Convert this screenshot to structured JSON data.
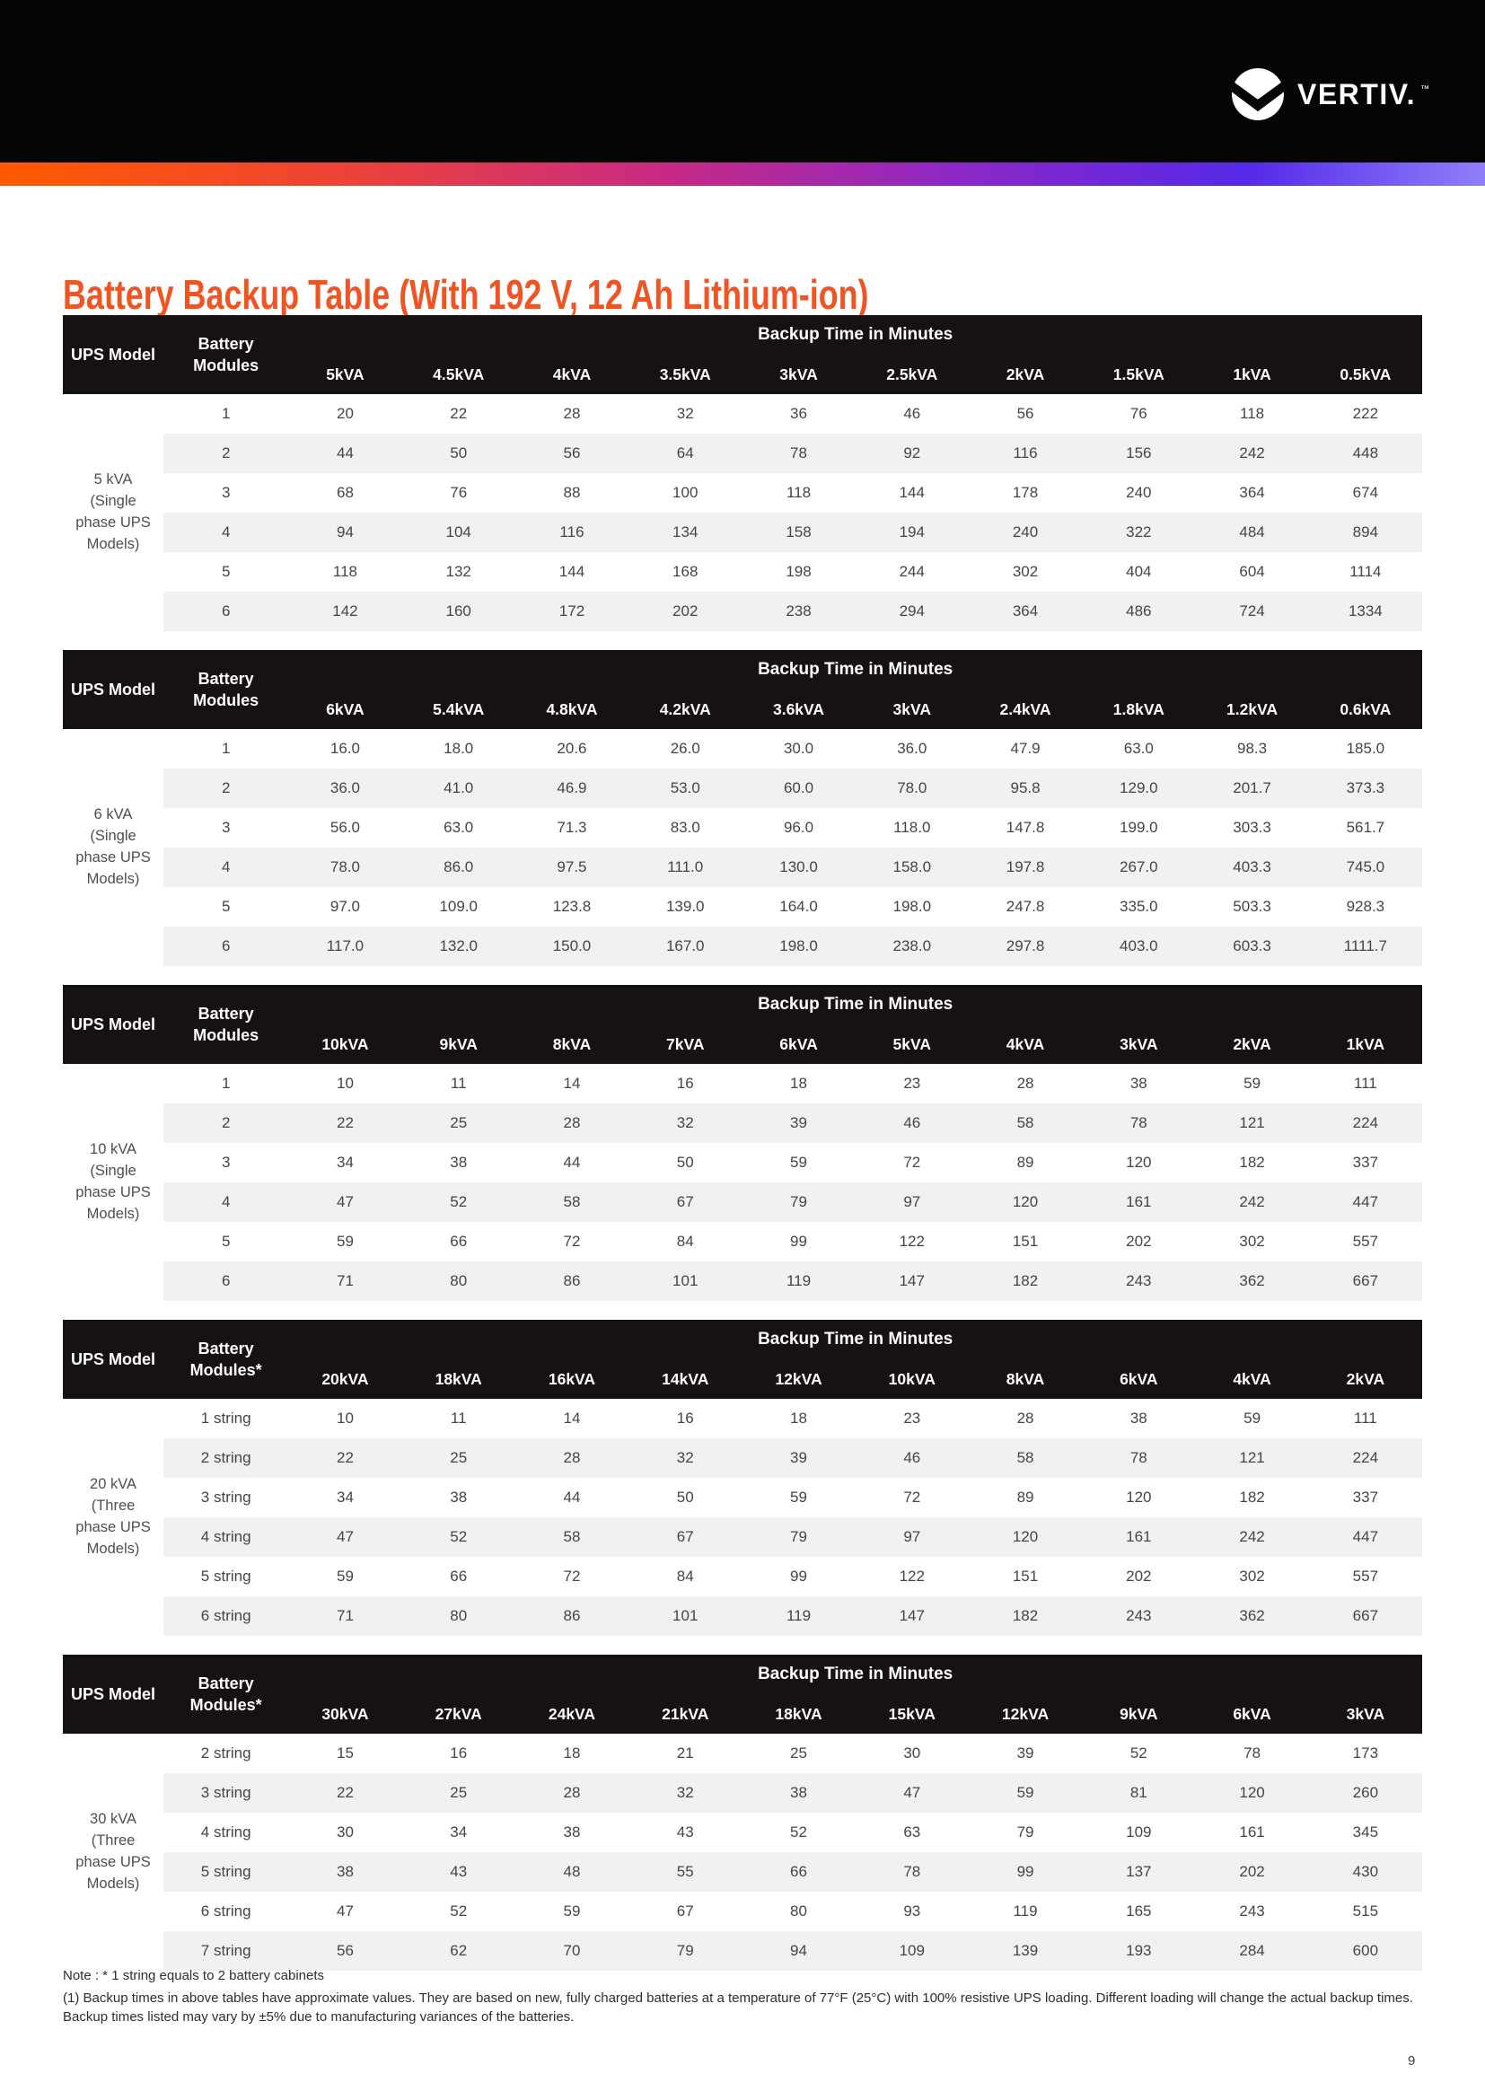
{
  "brand": {
    "wordmark": "VERTIV.",
    "trademark": "™"
  },
  "title": "Battery Backup Table (With 192 V, 12 Ah Lithium-ion)",
  "page_number": "9",
  "notes": {
    "line1": "Note : * 1 string equals to 2 battery cabinets",
    "line2": "(1) Backup times in above tables have approximate values. They are based on new, fully charged batteries at a temperature of 77°F (25°C) with 100% resistive UPS loading. Different loading will change the actual backup times. Backup times listed may vary by ±5% due to manufacturing variances of the batteries."
  },
  "colors": {
    "top_band_black": "#060404",
    "table_header_black": "#161112",
    "stripe_gray": "#F1F1F1",
    "accent_orange": "#F05423",
    "gradient_stops": [
      "#FF5A00",
      "#EF4434",
      "#C62A85",
      "#8E28C4",
      "#5529E8",
      "#8F7FFA"
    ]
  },
  "tables": [
    {
      "ups_model_label": "UPS Model",
      "modules_label": "Battery Modules",
      "span_label": "Backup Time in Minutes",
      "model": "5 kVA (Single phase UPS Models)",
      "kva_columns": [
        "5kVA",
        "4.5kVA",
        "4kVA",
        "3.5kVA",
        "3kVA",
        "2.5kVA",
        "2kVA",
        "1.5kVA",
        "1kVA",
        "0.5kVA"
      ],
      "rows": [
        {
          "modules": "1",
          "values": [
            "20",
            "22",
            "28",
            "32",
            "36",
            "46",
            "56",
            "76",
            "118",
            "222"
          ]
        },
        {
          "modules": "2",
          "values": [
            "44",
            "50",
            "56",
            "64",
            "78",
            "92",
            "116",
            "156",
            "242",
            "448"
          ]
        },
        {
          "modules": "3",
          "values": [
            "68",
            "76",
            "88",
            "100",
            "118",
            "144",
            "178",
            "240",
            "364",
            "674"
          ]
        },
        {
          "modules": "4",
          "values": [
            "94",
            "104",
            "116",
            "134",
            "158",
            "194",
            "240",
            "322",
            "484",
            "894"
          ]
        },
        {
          "modules": "5",
          "values": [
            "118",
            "132",
            "144",
            "168",
            "198",
            "244",
            "302",
            "404",
            "604",
            "1114"
          ]
        },
        {
          "modules": "6",
          "values": [
            "142",
            "160",
            "172",
            "202",
            "238",
            "294",
            "364",
            "486",
            "724",
            "1334"
          ]
        }
      ]
    },
    {
      "ups_model_label": "UPS Model",
      "modules_label": "Battery Modules",
      "span_label": "Backup Time in Minutes",
      "model": "6 kVA (Single phase UPS Models)",
      "kva_columns": [
        "6kVA",
        "5.4kVA",
        "4.8kVA",
        "4.2kVA",
        "3.6kVA",
        "3kVA",
        "2.4kVA",
        "1.8kVA",
        "1.2kVA",
        "0.6kVA"
      ],
      "rows": [
        {
          "modules": "1",
          "values": [
            "16.0",
            "18.0",
            "20.6",
            "26.0",
            "30.0",
            "36.0",
            "47.9",
            "63.0",
            "98.3",
            "185.0"
          ]
        },
        {
          "modules": "2",
          "values": [
            "36.0",
            "41.0",
            "46.9",
            "53.0",
            "60.0",
            "78.0",
            "95.8",
            "129.0",
            "201.7",
            "373.3"
          ]
        },
        {
          "modules": "3",
          "values": [
            "56.0",
            "63.0",
            "71.3",
            "83.0",
            "96.0",
            "118.0",
            "147.8",
            "199.0",
            "303.3",
            "561.7"
          ]
        },
        {
          "modules": "4",
          "values": [
            "78.0",
            "86.0",
            "97.5",
            "111.0",
            "130.0",
            "158.0",
            "197.8",
            "267.0",
            "403.3",
            "745.0"
          ]
        },
        {
          "modules": "5",
          "values": [
            "97.0",
            "109.0",
            "123.8",
            "139.0",
            "164.0",
            "198.0",
            "247.8",
            "335.0",
            "503.3",
            "928.3"
          ]
        },
        {
          "modules": "6",
          "values": [
            "117.0",
            "132.0",
            "150.0",
            "167.0",
            "198.0",
            "238.0",
            "297.8",
            "403.0",
            "603.3",
            "1111.7"
          ]
        }
      ]
    },
    {
      "ups_model_label": "UPS Model",
      "modules_label": "Battery Modules",
      "span_label": "Backup Time in Minutes",
      "model": "10 kVA (Single phase UPS Models)",
      "kva_columns": [
        "10kVA",
        "9kVA",
        "8kVA",
        "7kVA",
        "6kVA",
        "5kVA",
        "4kVA",
        "3kVA",
        "2kVA",
        "1kVA"
      ],
      "rows": [
        {
          "modules": "1",
          "values": [
            "10",
            "11",
            "14",
            "16",
            "18",
            "23",
            "28",
            "38",
            "59",
            "111"
          ]
        },
        {
          "modules": "2",
          "values": [
            "22",
            "25",
            "28",
            "32",
            "39",
            "46",
            "58",
            "78",
            "121",
            "224"
          ]
        },
        {
          "modules": "3",
          "values": [
            "34",
            "38",
            "44",
            "50",
            "59",
            "72",
            "89",
            "120",
            "182",
            "337"
          ]
        },
        {
          "modules": "4",
          "values": [
            "47",
            "52",
            "58",
            "67",
            "79",
            "97",
            "120",
            "161",
            "242",
            "447"
          ]
        },
        {
          "modules": "5",
          "values": [
            "59",
            "66",
            "72",
            "84",
            "99",
            "122",
            "151",
            "202",
            "302",
            "557"
          ]
        },
        {
          "modules": "6",
          "values": [
            "71",
            "80",
            "86",
            "101",
            "119",
            "147",
            "182",
            "243",
            "362",
            "667"
          ]
        }
      ]
    },
    {
      "ups_model_label": "UPS Model",
      "modules_label": "Battery Modules*",
      "span_label": "Backup Time in Minutes",
      "model": "20 kVA (Three phase UPS Models)",
      "kva_columns": [
        "20kVA",
        "18kVA",
        "16kVA",
        "14kVA",
        "12kVA",
        "10kVA",
        "8kVA",
        "6kVA",
        "4kVA",
        "2kVA"
      ],
      "rows": [
        {
          "modules": "1 string",
          "values": [
            "10",
            "11",
            "14",
            "16",
            "18",
            "23",
            "28",
            "38",
            "59",
            "111"
          ]
        },
        {
          "modules": "2 string",
          "values": [
            "22",
            "25",
            "28",
            "32",
            "39",
            "46",
            "58",
            "78",
            "121",
            "224"
          ]
        },
        {
          "modules": "3 string",
          "values": [
            "34",
            "38",
            "44",
            "50",
            "59",
            "72",
            "89",
            "120",
            "182",
            "337"
          ]
        },
        {
          "modules": "4 string",
          "values": [
            "47",
            "52",
            "58",
            "67",
            "79",
            "97",
            "120",
            "161",
            "242",
            "447"
          ]
        },
        {
          "modules": "5 string",
          "values": [
            "59",
            "66",
            "72",
            "84",
            "99",
            "122",
            "151",
            "202",
            "302",
            "557"
          ]
        },
        {
          "modules": "6 string",
          "values": [
            "71",
            "80",
            "86",
            "101",
            "119",
            "147",
            "182",
            "243",
            "362",
            "667"
          ]
        }
      ]
    },
    {
      "ups_model_label": "UPS Model",
      "modules_label": "Battery Modules*",
      "span_label": "Backup Time in Minutes",
      "model": "30 kVA (Three phase UPS Models)",
      "kva_columns": [
        "30kVA",
        "27kVA",
        "24kVA",
        "21kVA",
        "18kVA",
        "15kVA",
        "12kVA",
        "9kVA",
        "6kVA",
        "3kVA"
      ],
      "rows": [
        {
          "modules": "2 string",
          "values": [
            "15",
            "16",
            "18",
            "21",
            "25",
            "30",
            "39",
            "52",
            "78",
            "173"
          ]
        },
        {
          "modules": "3 string",
          "values": [
            "22",
            "25",
            "28",
            "32",
            "38",
            "47",
            "59",
            "81",
            "120",
            "260"
          ]
        },
        {
          "modules": "4 string",
          "values": [
            "30",
            "34",
            "38",
            "43",
            "52",
            "63",
            "79",
            "109",
            "161",
            "345"
          ]
        },
        {
          "modules": "5 string",
          "values": [
            "38",
            "43",
            "48",
            "55",
            "66",
            "78",
            "99",
            "137",
            "202",
            "430"
          ]
        },
        {
          "modules": "6 string",
          "values": [
            "47",
            "52",
            "59",
            "67",
            "80",
            "93",
            "119",
            "165",
            "243",
            "515"
          ]
        },
        {
          "modules": "7 string",
          "values": [
            "56",
            "62",
            "70",
            "79",
            "94",
            "109",
            "139",
            "193",
            "284",
            "600"
          ]
        }
      ]
    }
  ]
}
